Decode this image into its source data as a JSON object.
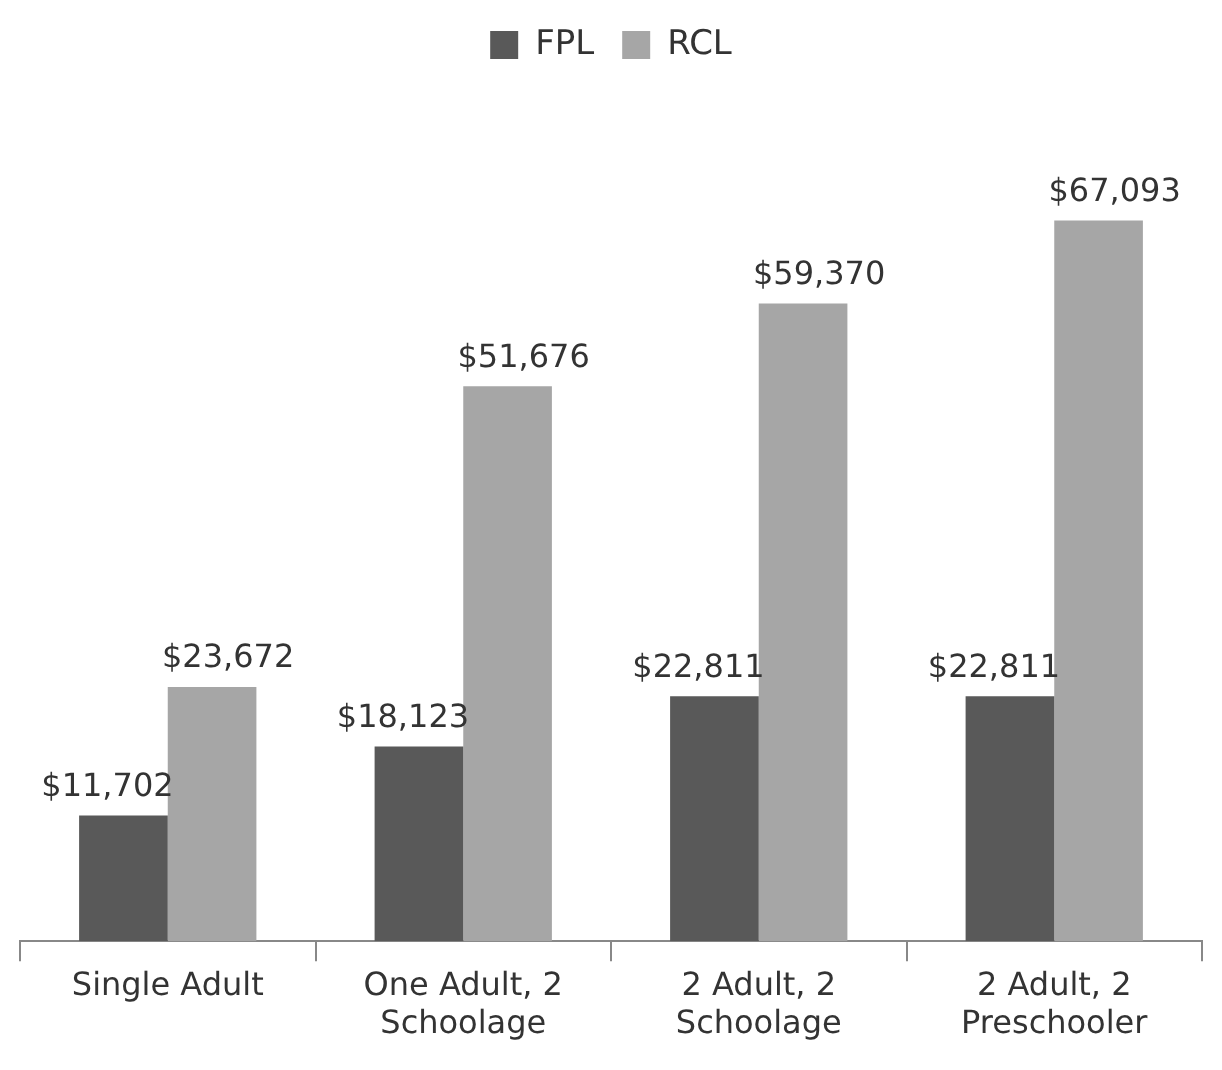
{
  "chart_data": {
    "type": "bar",
    "categories": [
      "Single Adult",
      "One Adult, 2 Schoolage",
      "2 Adult, 2 Schoolage",
      "2 Adult, 2 Preschooler"
    ],
    "series": [
      {
        "name": "FPL",
        "color": "#595959",
        "values": [
          11702,
          18123,
          22811,
          22811
        ],
        "value_labels": [
          "$11,702",
          "$18,123",
          "$22,811",
          "$22,811"
        ]
      },
      {
        "name": "RCL",
        "color": "#a6a6a6",
        "values": [
          23672,
          51676,
          59370,
          67093
        ],
        "value_labels": [
          "$23,672",
          "$51,676",
          "$59,370",
          "$67,093"
        ]
      }
    ],
    "legend": "top",
    "grid": false
  }
}
